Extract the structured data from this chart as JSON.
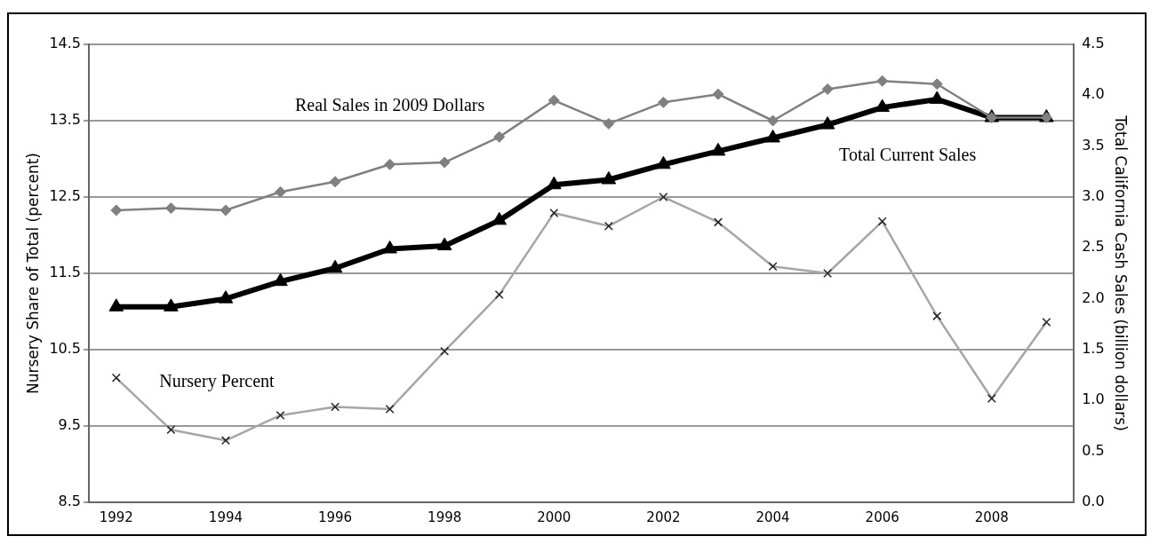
{
  "chart_data": {
    "type": "line",
    "ylabel": "Nursery Share of Total (percent)",
    "y2label": "Total California Cash Sales (billion dollars)",
    "categories": [
      "1992",
      null,
      "1994",
      null,
      "1996",
      null,
      "1998",
      null,
      "2000",
      null,
      "2002",
      null,
      "2004",
      null,
      "2006",
      null,
      "2008",
      null
    ],
    "ylim": [
      8.5,
      14.5
    ],
    "yticks": [
      8.5,
      9.5,
      10.5,
      11.5,
      12.5,
      13.5,
      14.5
    ],
    "y2lim": [
      0,
      4.5
    ],
    "y2ticks": [
      {
        "value": 0,
        "label": "0.0"
      },
      0.5,
      {
        "value": 1,
        "label": "1.0"
      },
      1.5,
      {
        "value": 2,
        "label": "2.0"
      },
      2.5,
      {
        "value": 3,
        "label": "3.0"
      },
      3.5,
      {
        "value": 4,
        "label": "4.0"
      },
      4.5
    ],
    "grid": "y",
    "legend": false,
    "line_style": "solid",
    "series": [
      {
        "name": "Real Sales in 2009 Dollars",
        "color": "#808080",
        "marker": "diamond",
        "axis": "y2",
        "values": [
          2.87,
          2.89,
          2.87,
          3.05,
          3.15,
          3.32,
          3.34,
          3.59,
          3.95,
          3.72,
          3.93,
          4.01,
          3.75,
          4.06,
          4.14,
          4.11,
          3.78,
          3.78
        ]
      },
      {
        "name": "Total Current Sales",
        "color": "#000000",
        "marker": "triangle",
        "axis": "y2",
        "values": [
          1.92,
          1.92,
          2.0,
          2.17,
          2.3,
          2.49,
          2.52,
          2.77,
          3.12,
          3.17,
          3.32,
          3.45,
          3.58,
          3.71,
          3.88,
          3.96,
          3.78,
          3.78
        ]
      },
      {
        "name": "Nursery Percent",
        "color": "#a6a6a6",
        "marker": "cross",
        "axis": "y",
        "values": [
          10.13,
          9.45,
          9.31,
          9.64,
          9.75,
          9.72,
          10.48,
          11.22,
          12.29,
          12.12,
          12.5,
          12.17,
          11.59,
          11.5,
          12.18,
          10.94,
          9.86,
          10.86
        ]
      }
    ]
  }
}
